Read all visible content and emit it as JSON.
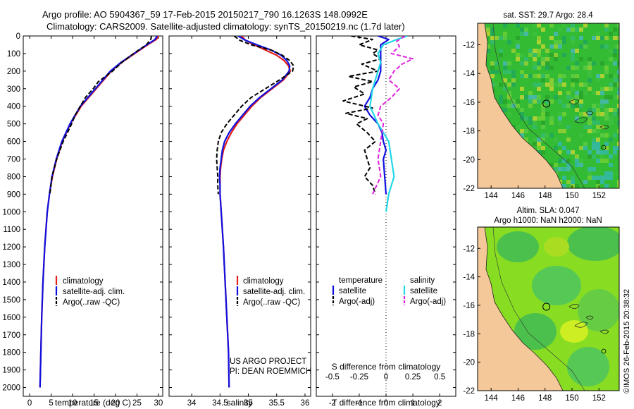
{
  "header": {
    "line1": "Argo profile: AO 5904367_59 17-Feb-2015 20150217_790 16.1263S 148.0992E",
    "line2": "Climatology: CARS2009. Satellite-adjusted climatology: synTS_20150219.nc (1.7d later)"
  },
  "credit": "©IMOS 26-Feb-2015 20:38:32",
  "colors": {
    "climatology": "#e02020",
    "satellite": "#1010e0",
    "argo": "#000000",
    "sal_satellite": "#20d8e8",
    "sal_argo": "#e020e0",
    "land": "#f5c89a",
    "sst_ocean": "#33bb33",
    "sla_ocean": "#88dd22"
  },
  "chart_data": [
    {
      "type": "line",
      "id": "temperature",
      "xlabel": "temperature (deg C)",
      "ylabel": "",
      "xlim": [
        -1.5,
        31
      ],
      "ylim": [
        2050,
        0
      ],
      "xticks": [
        "0",
        "5",
        "10",
        "15",
        "20",
        "25",
        "30"
      ],
      "xtick_values": [
        0,
        5,
        10,
        15,
        20,
        25,
        30
      ],
      "yticks": [
        "0",
        "100",
        "200",
        "300",
        "400",
        "500",
        "600",
        "700",
        "800",
        "900",
        "1000",
        "1100",
        "1200",
        "1300",
        "1400",
        "1500",
        "1600",
        "1700",
        "1800",
        "1900",
        "2000"
      ],
      "ytick_values": [
        0,
        100,
        200,
        300,
        400,
        500,
        600,
        700,
        800,
        900,
        1000,
        1100,
        1200,
        1300,
        1400,
        1500,
        1600,
        1700,
        1800,
        1900,
        2000
      ],
      "legend": [
        "climatology",
        "satellite-adj. clim.",
        "Argo(..raw -QC)"
      ],
      "series": [
        {
          "name": "climatology",
          "color": "climatology",
          "dash": false,
          "depth": [
            0,
            20,
            50,
            100,
            150,
            200,
            300,
            400,
            500,
            600,
            700,
            800,
            900,
            1000,
            1200,
            1400,
            1600,
            1800,
            2000
          ],
          "values": [
            30,
            29.5,
            27.5,
            24.5,
            21.5,
            19,
            15.5,
            12,
            9.5,
            7.6,
            6.3,
            5.3,
            4.6,
            4.1,
            3.5,
            3.1,
            2.8,
            2.6,
            2.4
          ]
        },
        {
          "name": "satellite-adj. clim.",
          "color": "satellite",
          "dash": false,
          "depth": [
            0,
            20,
            50,
            100,
            150,
            200,
            300,
            400,
            500,
            600,
            700,
            800,
            900,
            1000,
            1200,
            1400,
            1600,
            1800,
            2000
          ],
          "values": [
            29.7,
            29.2,
            27.3,
            24.3,
            21.3,
            18.8,
            15.3,
            11.8,
            9.4,
            7.5,
            6.2,
            5.2,
            4.6,
            4.1,
            3.5,
            3.1,
            2.8,
            2.6,
            2.4
          ]
        },
        {
          "name": "Argo(..raw -QC)",
          "color": "argo",
          "dash": true,
          "depth": [
            0,
            20,
            50,
            100,
            150,
            200,
            260,
            300,
            350,
            400,
            450,
            500,
            600,
            700,
            800,
            900
          ],
          "values": [
            28.4,
            28.2,
            27.2,
            24.2,
            21.5,
            19.3,
            16,
            14.8,
            13,
            11.8,
            10.6,
            9.8,
            7.8,
            6.3,
            5.2,
            4.7
          ]
        }
      ]
    },
    {
      "type": "line",
      "id": "salinity",
      "xlabel": "salinity",
      "xlim": [
        33.6,
        36.1
      ],
      "ylim": [
        2050,
        0
      ],
      "xticks": [
        "34",
        "34.5",
        "35",
        "35.5",
        "36"
      ],
      "xtick_values": [
        34,
        34.5,
        35,
        35.5,
        36
      ],
      "legend": [
        "climatology",
        "satellite-adj. clim.",
        "Argo(..raw -QC)"
      ],
      "annotations": [
        "US ARGO PROJECT",
        "PI: DEAN ROEMMICH"
      ],
      "series": [
        {
          "name": "climatology",
          "color": "climatology",
          "dash": false,
          "depth": [
            0,
            25,
            50,
            80,
            110,
            140,
            170,
            200,
            250,
            300,
            350,
            400,
            450,
            500,
            550,
            600,
            650,
            700,
            750,
            800,
            850,
            900,
            1000,
            1200,
            1400,
            1600,
            1800,
            2000
          ],
          "values": [
            34.88,
            34.95,
            35.1,
            35.3,
            35.5,
            35.63,
            35.71,
            35.74,
            35.62,
            35.42,
            35.22,
            35.06,
            34.93,
            34.8,
            34.7,
            34.62,
            34.56,
            34.53,
            34.51,
            34.5,
            34.5,
            34.5,
            34.52,
            34.56,
            34.59,
            34.62,
            34.65,
            34.66
          ]
        },
        {
          "name": "satellite-adj. clim.",
          "color": "satellite",
          "dash": false,
          "depth": [
            0,
            25,
            50,
            80,
            110,
            140,
            170,
            200,
            250,
            300,
            350,
            400,
            450,
            500,
            550,
            600,
            650,
            700,
            750,
            800,
            850,
            900,
            1000,
            1200,
            1400,
            1600,
            1800,
            2000
          ],
          "values": [
            34.82,
            34.95,
            35.15,
            35.4,
            35.58,
            35.68,
            35.73,
            35.72,
            35.6,
            35.4,
            35.2,
            35.03,
            34.9,
            34.77,
            34.66,
            34.58,
            34.54,
            34.52,
            34.5,
            34.49,
            34.5,
            34.5,
            34.52,
            34.56,
            34.59,
            34.62,
            34.65,
            34.66
          ]
        },
        {
          "name": "Argo(..raw -QC)",
          "color": "argo",
          "dash": true,
          "depth": [
            0,
            25,
            50,
            80,
            110,
            140,
            170,
            200,
            250,
            300,
            350,
            400,
            450,
            500,
            550,
            600,
            650,
            700,
            750,
            800,
            850,
            900
          ],
          "values": [
            34.75,
            34.85,
            35.05,
            35.4,
            35.6,
            35.73,
            35.8,
            35.78,
            35.55,
            35.3,
            35.05,
            34.88,
            34.75,
            34.62,
            34.52,
            34.47,
            34.45,
            34.44,
            34.45,
            34.46,
            34.46,
            34.47
          ]
        }
      ]
    },
    {
      "type": "line",
      "id": "difference",
      "xlabel": "T difference from climatology",
      "xlabel_top": "S difference from climatology",
      "xlim": [
        -2.6,
        2.6
      ],
      "ylim": [
        2050,
        0
      ],
      "xticks": [
        "-2",
        "-1",
        "0",
        "1",
        "2"
      ],
      "xtick_values": [
        -2,
        -1,
        0,
        1,
        2
      ],
      "sticks": [
        "-0.5",
        "-0.25",
        "0",
        "0.25",
        "0.5"
      ],
      "stick_values": [
        -2,
        -1,
        0,
        1,
        2
      ],
      "legend_titles": [
        "temperature",
        "salinity"
      ],
      "legend": [
        "satellite",
        "Argo(-adj)",
        "satellite",
        "Argo(-adj)"
      ],
      "series": [
        {
          "name": "satellite",
          "color": "satellite",
          "dash": false,
          "depth": [
            0,
            20,
            50,
            100,
            150,
            200,
            250,
            300,
            350,
            400,
            450,
            500,
            550,
            600,
            650,
            700,
            800,
            900
          ],
          "values": [
            -0.3,
            0.1,
            -0.2,
            -0.2,
            -0.2,
            -0.2,
            -0.3,
            -0.5,
            -0.6,
            -0.8,
            -0.6,
            -0.3,
            -0.15,
            -0.1,
            0,
            -0.1,
            -0.05,
            0
          ]
        },
        {
          "name": "Argo(-adj)",
          "color": "argo",
          "dash": true,
          "depth": [
            0,
            20,
            50,
            80,
            100,
            130,
            160,
            200,
            230,
            260,
            290,
            330,
            370,
            410,
            440,
            470,
            500,
            550,
            600,
            650,
            700,
            750,
            800,
            850,
            900
          ],
          "values": [
            -1.3,
            -0.5,
            -1,
            -0.3,
            -0.5,
            -0.2,
            -0.9,
            -0.3,
            -1.4,
            -0.5,
            -1.2,
            -0.8,
            -1.6,
            -0.5,
            -1.5,
            -0.7,
            -1.1,
            -0.7,
            -0.4,
            -0.8,
            -0.7,
            -0.6,
            -0.8,
            -0.5,
            -0.4
          ]
        },
        {
          "name": "satellite",
          "color": "sal_satellite",
          "dash": false,
          "depth": [
            0,
            20,
            50,
            100,
            150,
            200,
            300,
            400,
            500,
            600,
            700,
            800,
            900,
            1000
          ],
          "values": [
            0.8,
            0.4,
            -0.1,
            -0.3,
            -0.2,
            -0.3,
            -0.5,
            -0.6,
            -0.3,
            0.1,
            0.2,
            0.3,
            0.1,
            0
          ]
        },
        {
          "name": "Argo(-adj)",
          "color": "sal_argo",
          "dash": true,
          "depth": [
            0,
            30,
            60,
            100,
            130,
            160,
            200,
            250,
            300,
            350,
            400,
            450,
            500,
            600,
            700,
            800,
            900
          ],
          "values": [
            0.7,
            0.4,
            0.5,
            0.2,
            1,
            0.6,
            0.3,
            0.1,
            0.5,
            0.2,
            -0.2,
            -0.3,
            -0.1,
            -0.2,
            -0.3,
            -0.2,
            -0.5
          ]
        }
      ]
    },
    {
      "type": "heatmap",
      "id": "sst_map",
      "title": "sat. SST: 29.7  Argo: 28.4",
      "xlim": [
        143,
        153.5
      ],
      "ylim": [
        -22,
        -10.5
      ],
      "xticks": [
        "144",
        "146",
        "148",
        "150",
        "152"
      ],
      "xtick_values": [
        144,
        146,
        148,
        150,
        152
      ],
      "yticks": [
        "-12",
        "-14",
        "-16",
        "-18",
        "-20",
        "-22"
      ],
      "ytick_values": [
        -12,
        -14,
        -16,
        -18,
        -20,
        -22
      ],
      "marker": [
        148.1,
        -16.1
      ]
    },
    {
      "type": "heatmap",
      "id": "sla_map",
      "title": "Altim. SLA: 0.047",
      "subtitle": "Argo h1000: NaN h2000: NaN",
      "xlim": [
        143,
        153.5
      ],
      "ylim": [
        -22,
        -10.5
      ],
      "xticks": [
        "144",
        "146",
        "148",
        "150",
        "152"
      ],
      "xtick_values": [
        144,
        146,
        148,
        150,
        152
      ],
      "yticks": [
        "-12",
        "-14",
        "-16",
        "-18",
        "-20",
        "-22"
      ],
      "ytick_values": [
        -12,
        -14,
        -16,
        -18,
        -20,
        -22
      ],
      "marker": [
        148.1,
        -16.1
      ]
    }
  ]
}
